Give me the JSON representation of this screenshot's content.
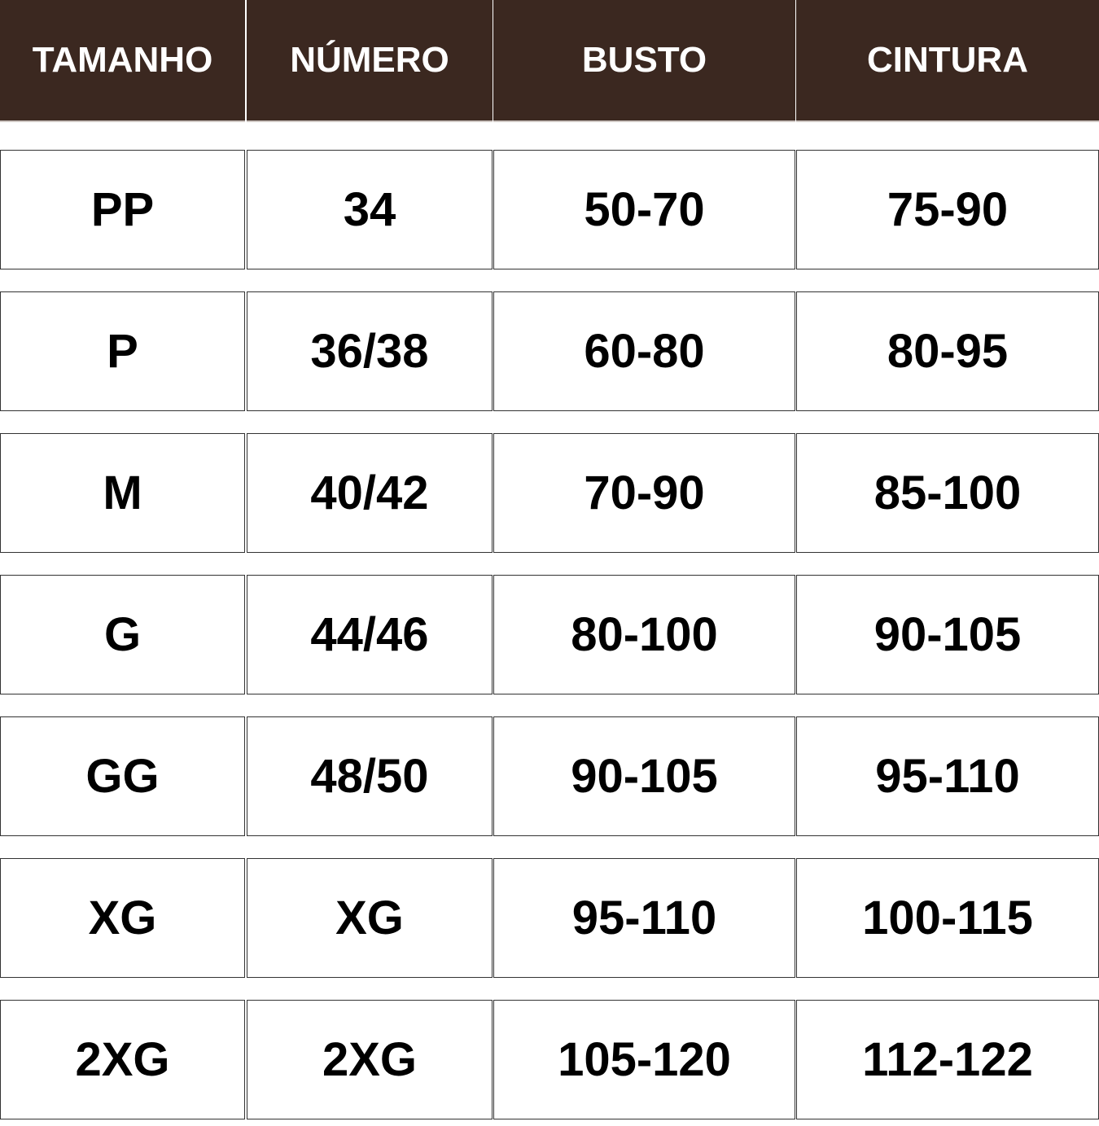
{
  "headers": [
    "TAMANHO",
    "NÚMERO",
    "BUSTO",
    "CINTURA"
  ],
  "rows": [
    [
      "PP",
      "34",
      "50-70",
      "75-90"
    ],
    [
      "P",
      "36/38",
      "60-80",
      "80-95"
    ],
    [
      "M",
      "40/42",
      "70-90",
      "85-100"
    ],
    [
      "G",
      "44/46",
      "80-100",
      "90-105"
    ],
    [
      "GG",
      "48/50",
      "90-105",
      "95-110"
    ],
    [
      "XG",
      "XG",
      "95-110",
      "100-115"
    ],
    [
      "2XG",
      "2XG",
      "105-120",
      "112-122"
    ]
  ],
  "colors": {
    "header_bg": "#3b2820",
    "header_text": "#ffffff"
  }
}
